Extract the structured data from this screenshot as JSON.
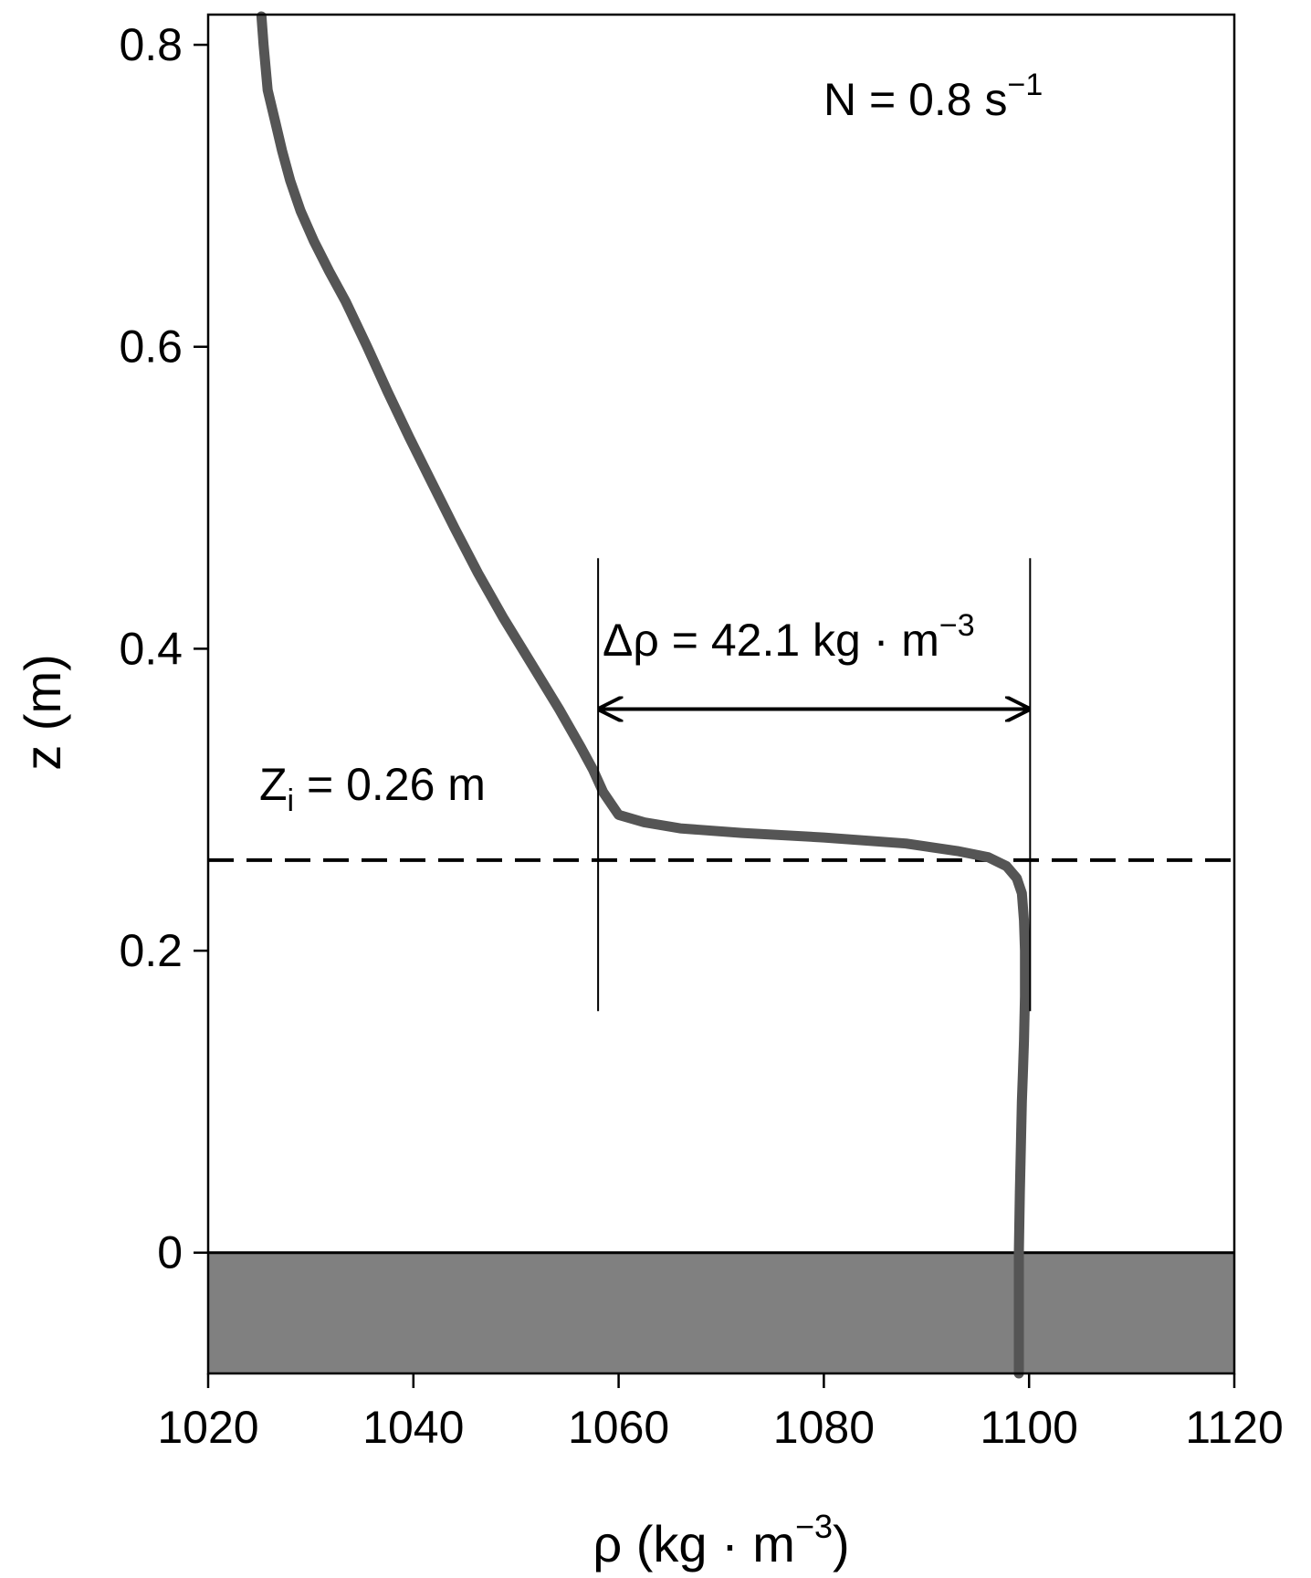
{
  "chart_data": {
    "type": "line",
    "title": "",
    "xlabel": "ρ (kg · m",
    "xlabel_sup": "−3",
    "xlabel_close": ")",
    "ylabel": "z (m)",
    "xlim": [
      1020,
      1120
    ],
    "ylim": [
      -0.08,
      0.82
    ],
    "xticks": [
      1020,
      1040,
      1060,
      1080,
      1100,
      1120
    ],
    "xtick_labels": [
      "1020",
      "1040",
      "1060",
      "1080",
      "1100",
      "1120"
    ],
    "yticks": [
      0,
      0.2,
      0.4,
      0.6,
      0.8
    ],
    "ytick_labels": [
      "0",
      "0.2",
      "0.4",
      "0.6",
      "0.8"
    ],
    "grid": false,
    "colors": {
      "profile": "#555555",
      "bottom_fill": "#808080",
      "lines": "#000000"
    },
    "series": [
      {
        "x": [
          1025.2,
          1025.4,
          1025.8,
          1026.5,
          1027.2,
          1028.0,
          1029.0,
          1030.3,
          1031.8,
          1033.4,
          1035.5,
          1037.5,
          1039.6,
          1041.8,
          1044.0,
          1046.3,
          1048.8,
          1051.5,
          1054.2,
          1056.3,
          1057.5,
          1058.5,
          1060.0,
          1062.5,
          1066.0,
          1072.0,
          1080.0,
          1088.0,
          1093.0,
          1096.0,
          1097.8,
          1098.8,
          1099.3,
          1099.5,
          1099.6,
          1099.6,
          1099.5,
          1099.4,
          1099.3,
          1099.2,
          1099.1,
          1099.0,
          1099.0,
          1099.0
        ],
        "y": [
          0.82,
          0.8,
          0.77,
          0.75,
          0.73,
          0.71,
          0.69,
          0.67,
          0.65,
          0.63,
          0.6,
          0.57,
          0.54,
          0.51,
          0.48,
          0.45,
          0.42,
          0.39,
          0.36,
          0.335,
          0.32,
          0.305,
          0.29,
          0.285,
          0.281,
          0.278,
          0.275,
          0.271,
          0.266,
          0.262,
          0.256,
          0.248,
          0.238,
          0.22,
          0.2,
          0.17,
          0.14,
          0.12,
          0.1,
          0.07,
          0.04,
          0.0,
          -0.04,
          -0.08
        ]
      }
    ],
    "annotations": {
      "n_label": "N = 0.8 s",
      "n_sup": "−1",
      "zi_prefix": "Z",
      "zi_sub": "i",
      "zi_rest": " = 0.26 m",
      "drho_label": "Δρ = 42.1 kg · m",
      "drho_sup": "−3",
      "zi_value": 0.26,
      "drho_left_x": 1058,
      "drho_right_x": 1100.1,
      "drho_arrow_y": 0.36,
      "drho_lines_y": [
        0.16,
        0.46
      ]
    }
  }
}
